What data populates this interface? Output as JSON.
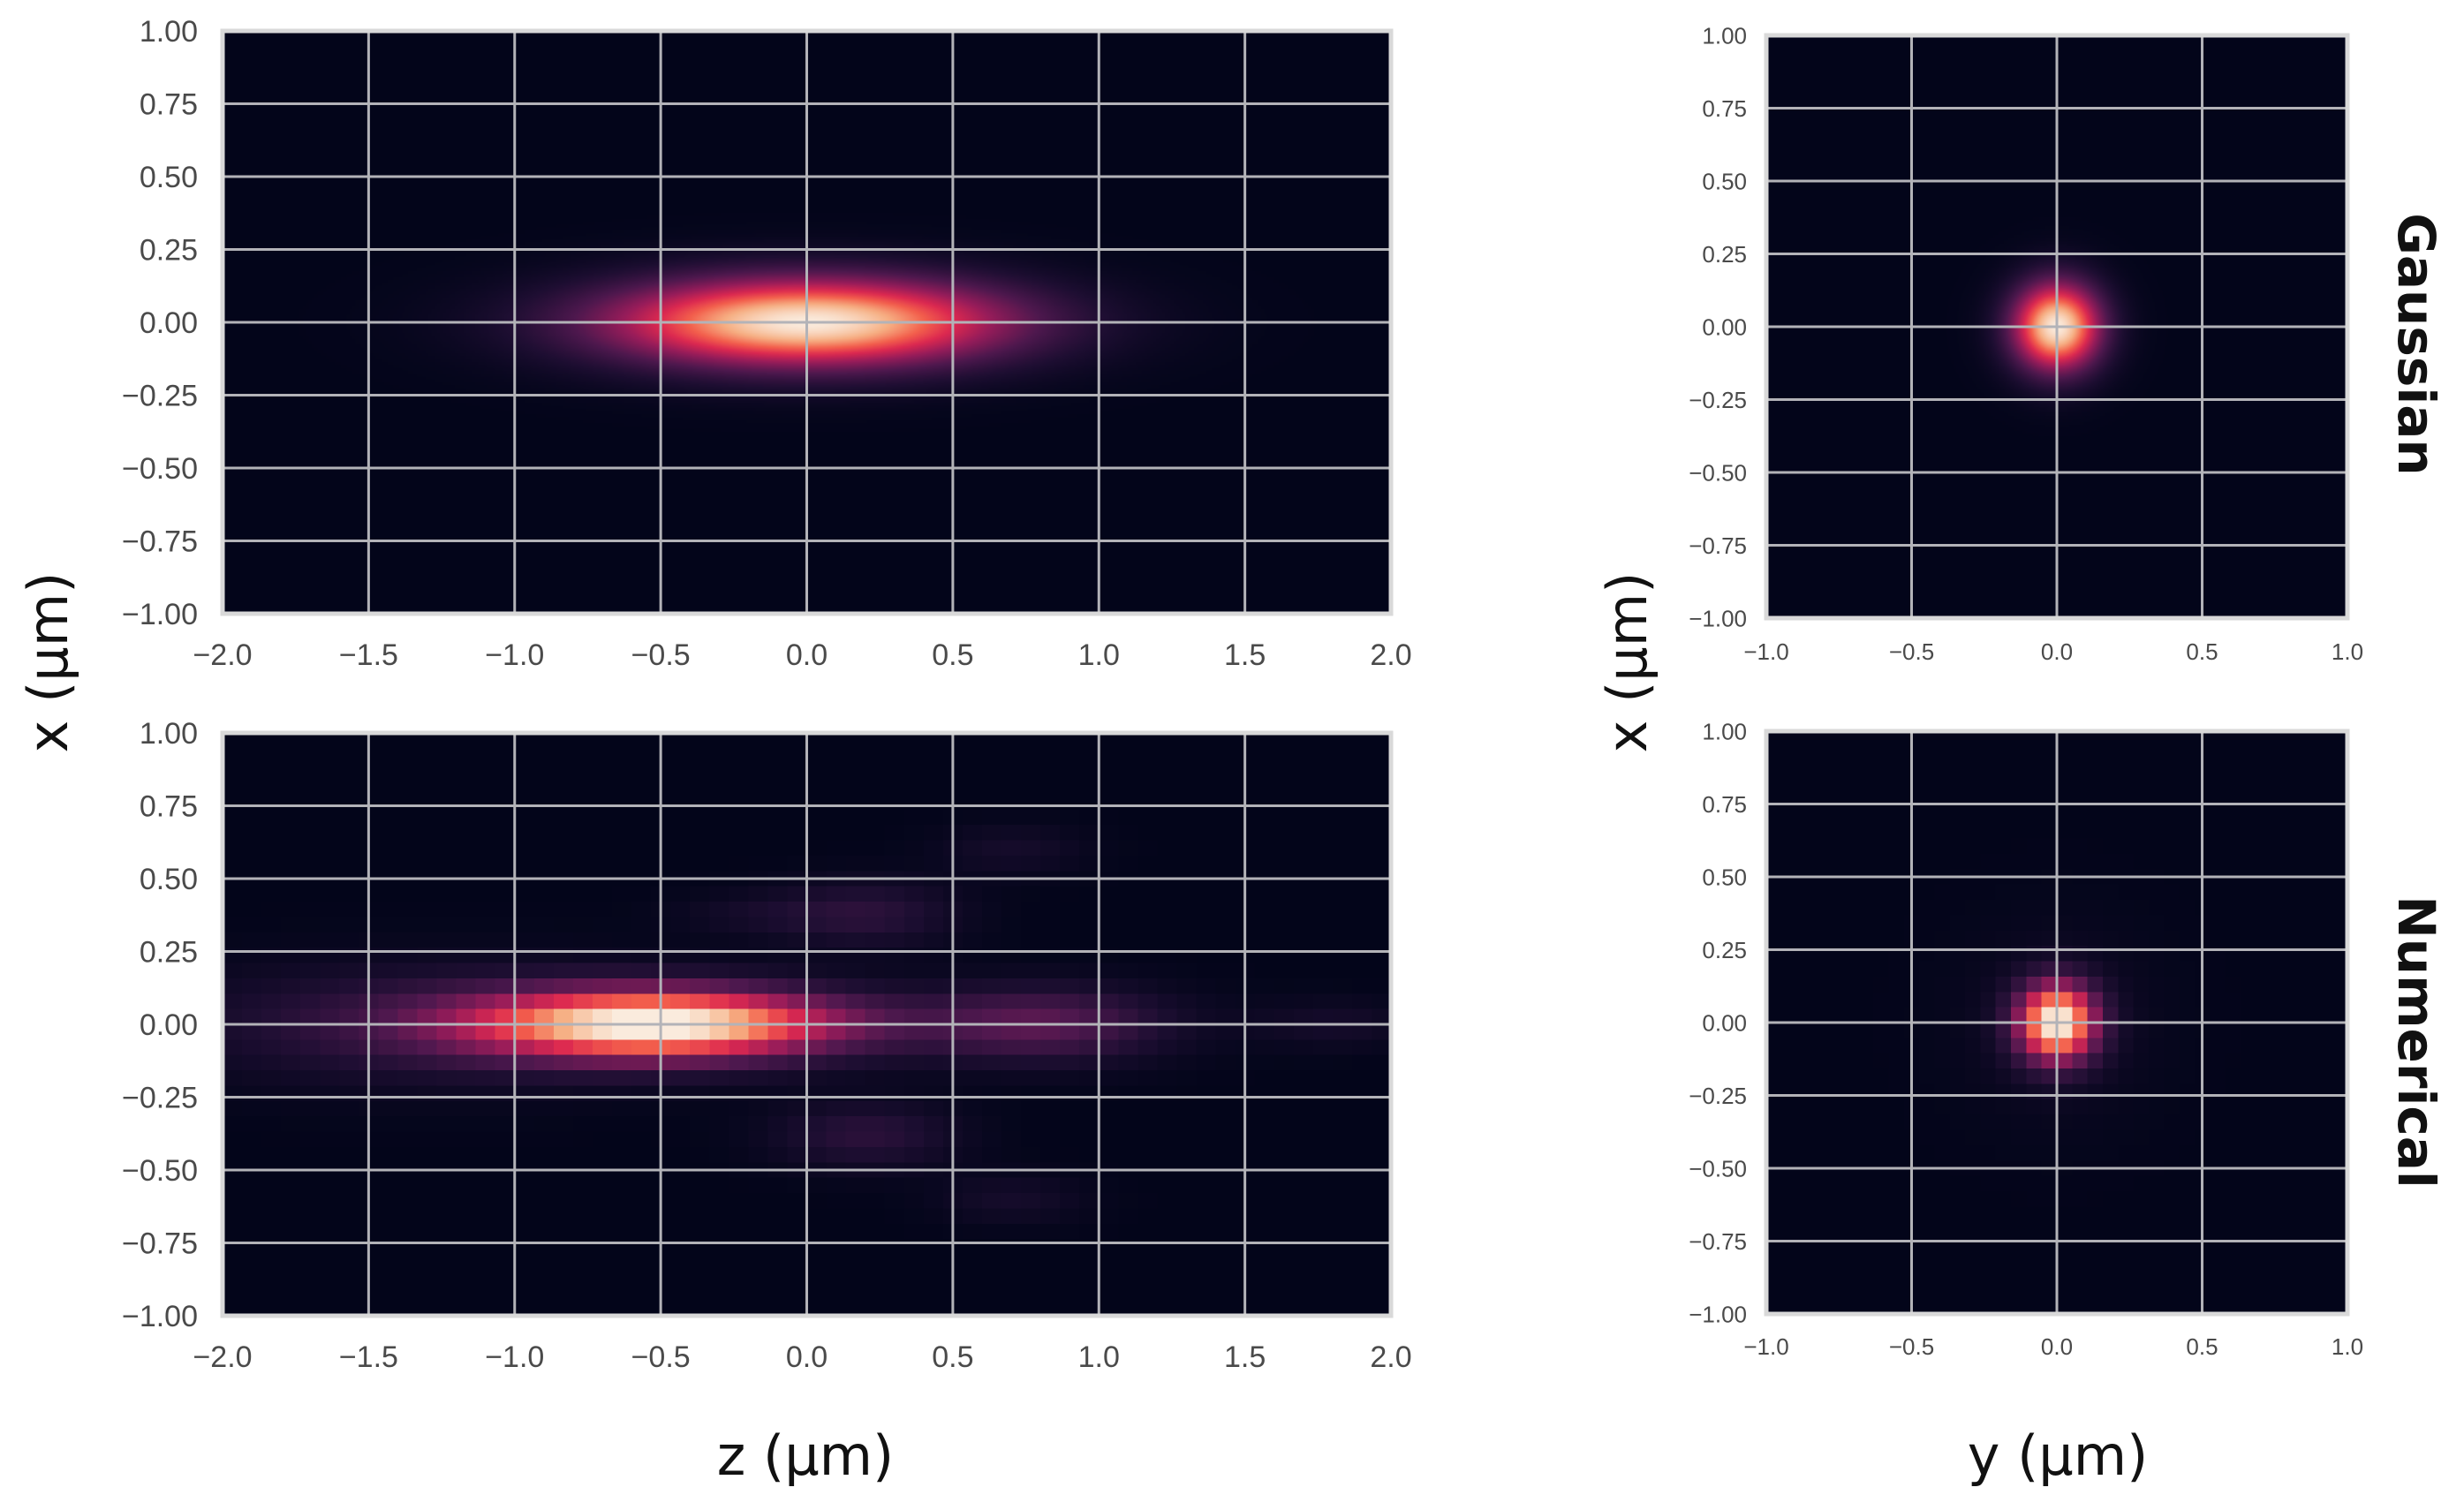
{
  "figure": {
    "shared_labels": {
      "left_y": "x (μm)",
      "right_y": "x (μm)",
      "left_x": "z (μm)",
      "right_x": "y (μm)"
    },
    "row_labels": [
      "Gaussian",
      "Numerical"
    ]
  },
  "chart_data": [
    {
      "id": "gaussian-xz",
      "type": "heatmap",
      "title": "",
      "row_label": "Gaussian",
      "xlabel": "z (μm)",
      "ylabel": "x (μm)",
      "xlim": [
        -2.0,
        2.0
      ],
      "ylim": [
        -1.0,
        1.0
      ],
      "xticks": [
        "−2.0",
        "−1.5",
        "−1.0",
        "−0.5",
        "0.0",
        "0.5",
        "1.0",
        "1.5",
        "2.0"
      ],
      "yticks": [
        "1.00",
        "0.75",
        "0.50",
        "0.25",
        "0.00",
        "−0.25",
        "−0.50",
        "−0.75",
        "−1.00"
      ],
      "colormap": "rocket",
      "grid": true,
      "peak": {
        "center_x": 0.0,
        "center_y": 0.0,
        "sigma_x": 0.5,
        "sigma_y": 0.11
      }
    },
    {
      "id": "gaussian-xy",
      "type": "heatmap",
      "title": "",
      "row_label": "Gaussian",
      "xlabel": "y (μm)",
      "ylabel": "x (μm)",
      "xlim": [
        -1.0,
        1.0
      ],
      "ylim": [
        -1.0,
        1.0
      ],
      "xticks": [
        "−1.0",
        "−0.5",
        "0.0",
        "0.5",
        "1.0"
      ],
      "yticks": [
        "1.00",
        "0.75",
        "0.50",
        "0.25",
        "0.00",
        "−0.25",
        "−0.50",
        "−0.75",
        "−1.00"
      ],
      "colormap": "rocket",
      "grid": true,
      "peak": {
        "center_x": 0.0,
        "center_y": 0.0,
        "sigma_x": 0.11,
        "sigma_y": 0.11
      }
    },
    {
      "id": "numerical-xz",
      "type": "heatmap",
      "title": "",
      "row_label": "Numerical",
      "xlabel": "z (μm)",
      "ylabel": "x (μm)",
      "xlim": [
        -2.0,
        2.0
      ],
      "ylim": [
        -1.0,
        1.0
      ],
      "xticks": [
        "−2.0",
        "−1.5",
        "−1.0",
        "−0.5",
        "0.0",
        "0.5",
        "1.0",
        "1.5",
        "2.0"
      ],
      "yticks": [
        "1.00",
        "0.75",
        "0.50",
        "0.25",
        "0.00",
        "−0.25",
        "−0.50",
        "−0.75",
        "−1.00"
      ],
      "colormap": "rocket",
      "grid": true,
      "pixelated": true,
      "grid_cells": [
        60,
        38
      ],
      "blobs": [
        {
          "cx": -0.5,
          "cy": 0.0,
          "sx": 0.45,
          "sy": 0.085,
          "amp": 1.0
        },
        {
          "cx": -1.3,
          "cy": 0.0,
          "sx": 0.6,
          "sy": 0.14,
          "amp": 0.18
        },
        {
          "cx": 0.8,
          "cy": 0.0,
          "sx": 0.3,
          "sy": 0.09,
          "amp": 0.3
        },
        {
          "cx": 1.8,
          "cy": 0.0,
          "sx": 0.2,
          "sy": 0.06,
          "amp": 0.08
        },
        {
          "cx": 0.2,
          "cy": 0.38,
          "sx": 0.22,
          "sy": 0.08,
          "amp": 0.16
        },
        {
          "cx": 0.2,
          "cy": -0.38,
          "sx": 0.22,
          "sy": 0.08,
          "amp": 0.16
        },
        {
          "cx": 0.7,
          "cy": 0.6,
          "sx": 0.18,
          "sy": 0.06,
          "amp": 0.08
        },
        {
          "cx": 0.7,
          "cy": -0.6,
          "sx": 0.18,
          "sy": 0.06,
          "amp": 0.08
        },
        {
          "cx": -0.2,
          "cy": 0.38,
          "sx": 0.2,
          "sy": 0.05,
          "amp": 0.06
        }
      ]
    },
    {
      "id": "numerical-xy",
      "type": "heatmap",
      "title": "",
      "row_label": "Numerical",
      "xlabel": "y (μm)",
      "ylabel": "x (μm)",
      "xlim": [
        -1.0,
        1.0
      ],
      "ylim": [
        -1.0,
        1.0
      ],
      "xticks": [
        "−1.0",
        "−0.5",
        "0.0",
        "0.5",
        "1.0"
      ],
      "yticks": [
        "1.00",
        "0.75",
        "0.50",
        "0.25",
        "0.00",
        "−0.25",
        "−0.50",
        "−0.75",
        "−1.00"
      ],
      "colormap": "rocket",
      "grid": true,
      "pixelated": true,
      "grid_cells": [
        38,
        38
      ],
      "blobs": [
        {
          "cx": 0.0,
          "cy": 0.0,
          "sx": 0.095,
          "sy": 0.095,
          "amp": 1.0
        },
        {
          "cx": 0.0,
          "cy": 0.0,
          "sx": 0.25,
          "sy": 0.25,
          "amp": 0.05
        }
      ]
    }
  ]
}
